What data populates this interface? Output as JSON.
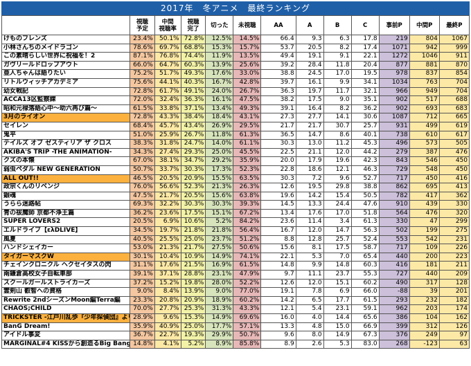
{
  "title": "2017年　冬アニメ　最終ランキング",
  "headers": {
    "name": "",
    "yotei": "視聴\n予定",
    "chukan": "中間\n視聴率",
    "kanryo": "視聴\n完了",
    "kitta": "切った",
    "mishicho": "未視聴",
    "aa": "AA",
    "a": "A",
    "b": "B",
    "c": "C",
    "jizen_p": "事前P",
    "chukan_p": "中間P",
    "saishu_p": "最終P"
  },
  "rows": [
    [
      "けものフレンズ",
      "23.4%",
      "50.1%",
      "72.8%",
      "12.5%",
      "14.5%",
      "66.4",
      "9.3",
      "6.3",
      "17.8",
      "219",
      "804",
      "1067"
    ],
    [
      "小林さんちのメイドラゴン",
      "78.6%",
      "69.7%",
      "68.8%",
      "15.3%",
      "15.7%",
      "53.7",
      "20.5",
      "8.2",
      "17.4",
      "1071",
      "942",
      "999"
    ],
    [
      "この素晴らしい世界に祝福を！2",
      "87.1%",
      "76.8%",
      "74.4%",
      "11.9%",
      "13.5%",
      "49.4",
      "19.1",
      "9.1",
      "22.1",
      "1272",
      "1046",
      "911"
    ],
    [
      "ガヴリールドロップアウト",
      "66.0%",
      "64.7%",
      "60.3%",
      "13.9%",
      "25.6%",
      "39.2",
      "28.4",
      "11.8",
      "20.4",
      "877",
      "881",
      "870"
    ],
    [
      "亜人ちゃんは語りたい",
      "75.2%",
      "51.7%",
      "49.3%",
      "17.6%",
      "33.0%",
      "38.8",
      "24.5",
      "17.0",
      "19.5",
      "978",
      "837",
      "854"
    ],
    [
      "リトルウィッチアカデミア",
      "75.6%",
      "44.1%",
      "40.3%",
      "16.7%",
      "42.8%",
      "39.7",
      "16.1",
      "9.9",
      "34.1",
      "1034",
      "763",
      "704"
    ],
    [
      "幼女戦記",
      "72.8%",
      "61.7%",
      "49.1%",
      "24.0%",
      "26.7%",
      "36.3",
      "19.7",
      "11.7",
      "32.1",
      "966",
      "949",
      "704"
    ],
    [
      "ACCA13区監察課",
      "72.0%",
      "32.4%",
      "36.3%",
      "16.1%",
      "47.5%",
      "38.2",
      "17.5",
      "9.0",
      "35.1",
      "902",
      "517",
      "688"
    ],
    [
      "昭和元禄落語心中～助六再び篇～",
      "61.5%",
      "33.8%",
      "37.1%",
      "13.4%",
      "49.3%",
      "39.1",
      "16.4",
      "8.2",
      "36.2",
      "902",
      "693",
      "683"
    ],
    [
      "3月のライオン",
      "72.8%",
      "43.3%",
      "38.4%",
      "18.4%",
      "43.1%",
      "27.3",
      "27.7",
      "14.1",
      "30.6",
      "1087",
      "712",
      "665"
    ],
    [
      "セイレン",
      "68.4%",
      "45.7%",
      "43.4%",
      "26.9%",
      "29.5%",
      "21.7",
      "21.7",
      "30.7",
      "25.7",
      "931",
      "499",
      "619"
    ],
    [
      "鬼平",
      "51.0%",
      "25.9%",
      "26.7%",
      "11.8%",
      "61.3%",
      "36.5",
      "14.7",
      "8.6",
      "40.1",
      "738",
      "610",
      "617"
    ],
    [
      "テイルズ オブ ゼスティリア ザ クロス",
      "38.3%",
      "31.8%",
      "24.7%",
      "14.0%",
      "61.1%",
      "30.3",
      "13.0",
      "11.2",
      "45.3",
      "496",
      "573",
      "505"
    ],
    [
      "AKIBA'S TRIP -THE ANIMATION-",
      "34.3%",
      "27.4%",
      "29.3%",
      "25.0%",
      "45.5%",
      "22.5",
      "21.1",
      "12.0",
      "44.2",
      "279",
      "387",
      "476"
    ],
    [
      "クズの本懐",
      "67.0%",
      "38.1%",
      "34.7%",
      "29.2%",
      "35.9%",
      "20.0",
      "17.9",
      "19.6",
      "42.3",
      "843",
      "546",
      "450"
    ],
    [
      "弱虫ペダル NEW GENERATION",
      "50.7%",
      "33.7%",
      "30.3%",
      "17.3%",
      "52.3%",
      "22.8",
      "18.6",
      "12.1",
      "46.3",
      "729",
      "548",
      "450"
    ],
    [
      "ALL OUT!!",
      "46.5%",
      "20.5%",
      "20.9%",
      "15.5%",
      "63.5%",
      "30.3",
      "7.2",
      "9.6",
      "52.7",
      "717",
      "450",
      "416"
    ],
    [
      "政宗くんのリベンジ",
      "76.0%",
      "56.6%",
      "52.3%",
      "21.3%",
      "26.3%",
      "12.6",
      "19.5",
      "29.8",
      "38.8",
      "862",
      "695",
      "413"
    ],
    [
      "銀魂",
      "47.5%",
      "21.7%",
      "20.5%",
      "15.6%",
      "63.8%",
      "19.6",
      "14.2",
      "15.4",
      "50.5",
      "782",
      "417",
      "362"
    ],
    [
      "うらら迷路帖",
      "69.3%",
      "32.2%",
      "30.3%",
      "30.3%",
      "39.3%",
      "14.5",
      "13.3",
      "24.4",
      "47.6",
      "910",
      "439",
      "330"
    ],
    [
      "青の祓魔師 京都不浄王篇",
      "36.2%",
      "23.6%",
      "17.5%",
      "15.1%",
      "67.2%",
      "13.4",
      "17.6",
      "17.0",
      "51.8",
      "564",
      "476",
      "320"
    ],
    [
      "SUPER LOVERS2",
      "20.5%",
      "6.9%",
      "10.6%",
      "5.2%",
      "84.2%",
      "23.6",
      "11.4",
      "3.4",
      "61.3",
      "330",
      "47",
      "299"
    ],
    [
      "エルドライブ【ελDLIVE】",
      "34.5%",
      "19.7%",
      "21.8%",
      "21.8%",
      "56.4%",
      "16.7",
      "12.0",
      "14.7",
      "56.3",
      "502",
      "199",
      "275"
    ],
    [
      "風夏",
      "40.5%",
      "25.5%",
      "25.0%",
      "23.7%",
      "51.2%",
      "8.8",
      "12.8",
      "25.7",
      "52.4",
      "553",
      "542",
      "231"
    ],
    [
      "ハンドシェイカー",
      "53.0%",
      "21.3%",
      "21.7%",
      "27.5%",
      "50.6%",
      "15.6",
      "8.1",
      "17.5",
      "58.7",
      "717",
      "109",
      "226"
    ],
    [
      "タイガーマスクW",
      "30.1%",
      "10.4%",
      "10.9%",
      "14.9%",
      "74.1%",
      "22.1",
      "5.3",
      "7.0",
      "65.4",
      "440",
      "200",
      "223"
    ],
    [
      "チェインクロニクル ヘクセイタスの閃",
      "31.1%",
      "17.6%",
      "21.5%",
      "16.9%",
      "61.5%",
      "14.8",
      "9.9",
      "14.8",
      "60.3",
      "416",
      "181",
      "211"
    ],
    [
      "南鎌倉高校女子自転車部",
      "39.1%",
      "37.1%",
      "28.8%",
      "23.1%",
      "47.9%",
      "9.7",
      "11.1",
      "23.7",
      "55.3",
      "727",
      "440",
      "209"
    ],
    [
      "スクールガールストライカーズ",
      "37.2%",
      "15.2%",
      "19.8%",
      "28.0%",
      "52.2%",
      "12.6",
      "12.0",
      "15.1",
      "60.2",
      "490",
      "317",
      "128"
    ],
    [
      "霊剣山 叡智への資格",
      "9.0%",
      "8.4%",
      "13.9%",
      "9.0%",
      "77.0%",
      "19.1",
      "7.8",
      "6.9",
      "66.0",
      "-88",
      "39",
      "201"
    ],
    [
      "Rewrite 2ndシーズンMoon編Terra編",
      "23.3%",
      "20.8%",
      "20.9%",
      "18.9%",
      "60.2%",
      "14.2",
      "6.5",
      "17.7",
      "61.5",
      "293",
      "232",
      "182"
    ],
    [
      "CHAOS;CHILD",
      "70.0%",
      "27.7%",
      "25.3%",
      "31.3%",
      "43.3%",
      "12.1",
      "5.4",
      "23.1",
      "59.1",
      "962",
      "203",
      "174"
    ],
    [
      "TRICKSTER -江戸川乱歩『少年探偵団』より-",
      "28.9%",
      "9.6%",
      "15.3%",
      "14.9%",
      "69.6%",
      "16.0",
      "4.0",
      "14.4",
      "65.6",
      "386",
      "104",
      "162"
    ],
    [
      "BanG Dream!",
      "35.9%",
      "40.9%",
      "25.0%",
      "17.7%",
      "57.1%",
      "13.3",
      "4.8",
      "15.0",
      "66.9",
      "399",
      "312",
      "126"
    ],
    [
      "アイドル事変",
      "36.7%",
      "22.7%",
      "19.3%",
      "29.9%",
      "50.7%",
      "9.6",
      "8.0",
      "14.9",
      "67.3",
      "376",
      "249",
      "97"
    ],
    [
      "MARGINAL#4 KISSから創造るBig Bang",
      "14.8%",
      "4.1%",
      "5.2%",
      "8.9%",
      "85.8%",
      "8.9",
      "2.6",
      "5.3",
      "83.0",
      "268",
      "-123",
      "63"
    ]
  ],
  "highlight_rows": [
    9,
    16,
    25,
    32
  ]
}
